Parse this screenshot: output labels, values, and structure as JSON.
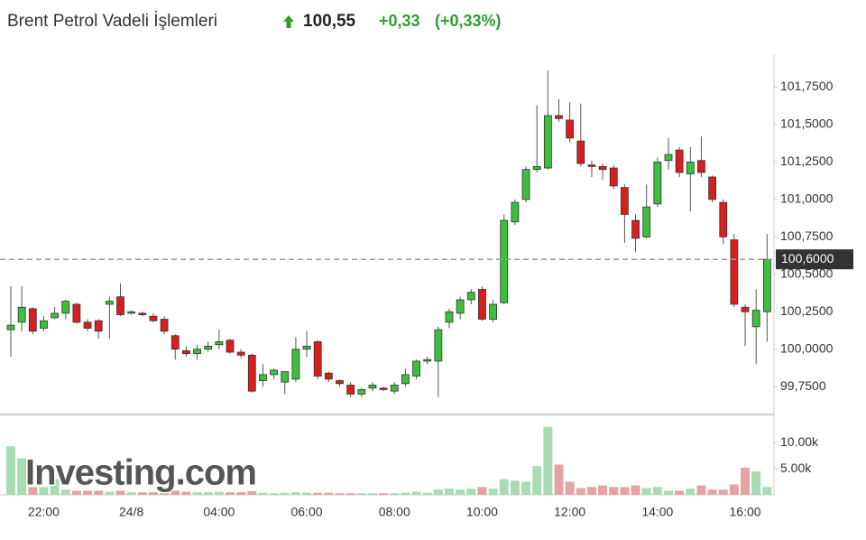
{
  "header": {
    "title": "Brent Petrol Vadeli İşlemleri",
    "price": "100,55",
    "change": "+0,33",
    "change_percent": "(+0,33%)"
  },
  "chart_data": {
    "type": "candlestick",
    "watermark": "Investing.com",
    "categories": [
      null,
      null,
      null,
      "22:00",
      null,
      null,
      null,
      null,
      null,
      null,
      null,
      "24/8",
      null,
      null,
      null,
      null,
      null,
      null,
      null,
      "04:00",
      null,
      null,
      null,
      null,
      null,
      null,
      null,
      "06:00",
      null,
      null,
      null,
      null,
      null,
      null,
      null,
      "08:00",
      null,
      null,
      null,
      null,
      null,
      null,
      null,
      "10:00",
      null,
      null,
      null,
      null,
      null,
      null,
      null,
      "12:00",
      null,
      null,
      null,
      null,
      null,
      null,
      null,
      "14:00",
      null,
      null,
      null,
      null,
      null,
      null,
      null,
      "16:00",
      null,
      null
    ],
    "open": [
      100.13,
      100.18,
      100.27,
      100.14,
      100.21,
      100.24,
      100.3,
      100.18,
      100.19,
      100.3,
      100.35,
      100.24,
      100.24,
      100.22,
      100.2,
      100.09,
      99.99,
      99.97,
      100.0,
      100.03,
      100.06,
      99.98,
      99.96,
      99.79,
      99.83,
      99.78,
      99.8,
      100.0,
      100.05,
      99.84,
      99.79,
      99.76,
      99.7,
      99.74,
      99.74,
      99.72,
      99.77,
      99.82,
      99.92,
      99.92,
      100.18,
      100.24,
      100.33,
      100.4,
      100.2,
      100.31,
      100.85,
      101.0,
      101.2,
      101.21,
      101.56,
      101.53,
      101.39,
      101.23,
      101.22,
      101.21,
      101.08,
      100.86,
      100.75,
      100.97,
      101.26,
      101.33,
      101.17,
      101.26,
      101.15,
      100.98,
      100.73,
      100.28,
      100.15,
      100.25
    ],
    "high": [
      100.42,
      100.42,
      100.28,
      100.22,
      100.28,
      100.33,
      100.31,
      100.2,
      100.2,
      100.35,
      100.44,
      100.26,
      100.25,
      100.24,
      100.22,
      100.1,
      100.02,
      100.03,
      100.05,
      100.13,
      100.07,
      100.0,
      99.97,
      99.9,
      99.87,
      99.85,
      100.08,
      100.12,
      100.06,
      99.85,
      99.8,
      99.78,
      99.74,
      99.78,
      99.75,
      99.78,
      99.87,
      99.93,
      99.95,
      100.15,
      100.27,
      100.35,
      100.4,
      100.42,
      100.33,
      100.9,
      101.0,
      101.22,
      101.63,
      101.86,
      101.67,
      101.65,
      101.64,
      101.26,
      101.24,
      101.23,
      101.1,
      100.9,
      101.1,
      101.28,
      101.41,
      101.35,
      101.35,
      101.42,
      101.16,
      101.0,
      100.77,
      100.3,
      100.4,
      100.77
    ],
    "low": [
      99.95,
      100.12,
      100.1,
      100.12,
      100.2,
      100.2,
      100.17,
      100.12,
      100.07,
      100.07,
      100.22,
      100.23,
      100.22,
      100.18,
      100.1,
      99.93,
      99.95,
      99.93,
      99.98,
      100.0,
      99.97,
      99.94,
      99.71,
      99.75,
      99.8,
      99.7,
      99.78,
      99.95,
      99.8,
      99.78,
      99.75,
      99.68,
      99.68,
      99.72,
      99.72,
      99.7,
      99.75,
      99.8,
      99.9,
      99.68,
      100.14,
      100.2,
      100.3,
      100.19,
      100.18,
      100.3,
      100.83,
      100.98,
      101.18,
      101.2,
      101.52,
      101.38,
      101.22,
      101.15,
      101.13,
      101.07,
      100.71,
      100.65,
      100.74,
      100.95,
      101.2,
      101.15,
      100.92,
      101.15,
      100.98,
      100.7,
      100.28,
      100.02,
      99.9,
      100.05
    ],
    "close": [
      100.16,
      100.28,
      100.12,
      100.19,
      100.24,
      100.32,
      100.18,
      100.14,
      100.12,
      100.32,
      100.23,
      100.25,
      100.23,
      100.19,
      100.12,
      100.0,
      99.97,
      100.0,
      100.02,
      100.05,
      99.98,
      99.96,
      99.72,
      99.83,
      99.86,
      99.85,
      100.0,
      100.02,
      99.82,
      99.8,
      99.77,
      99.7,
      99.73,
      99.76,
      99.73,
      99.76,
      99.83,
      99.92,
      99.93,
      100.13,
      100.25,
      100.33,
      100.38,
      100.2,
      100.3,
      100.86,
      100.98,
      101.2,
      101.22,
      101.56,
      101.54,
      101.41,
      101.24,
      101.22,
      101.2,
      101.09,
      100.9,
      100.74,
      100.95,
      101.25,
      101.3,
      101.18,
      101.25,
      101.18,
      101.0,
      100.75,
      100.3,
      100.25,
      100.26,
      100.6
    ],
    "volume": [
      9300,
      7000,
      1500,
      1500,
      3000,
      1000,
      800,
      800,
      800,
      600,
      800,
      500,
      500,
      500,
      500,
      800,
      600,
      500,
      500,
      600,
      500,
      500,
      700,
      400,
      300,
      400,
      500,
      400,
      400,
      400,
      300,
      300,
      300,
      300,
      300,
      300,
      400,
      600,
      400,
      1000,
      1200,
      1000,
      1200,
      1500,
      1200,
      3000,
      2700,
      2500,
      5500,
      13000,
      5800,
      2500,
      1300,
      1500,
      1800,
      1500,
      1500,
      1800,
      1300,
      1500,
      800,
      800,
      1200,
      1800,
      1000,
      1000,
      2000,
      5200,
      4500,
      1500
    ],
    "up_color": "#3cbf3c",
    "down_color": "#d91e1e",
    "volume_up_color": "#a8dcb2",
    "volume_down_color": "#e6a3a3",
    "ylim": [
      99.57,
      101.97
    ],
    "yticks": [
      {
        "value": 99.75,
        "label": "99,7500"
      },
      {
        "value": 100.0,
        "label": "100,0000"
      },
      {
        "value": 100.25,
        "label": "100,2500"
      },
      {
        "value": 100.5,
        "label": "100,5000"
      },
      {
        "value": 100.75,
        "label": "100,7500"
      },
      {
        "value": 101.0,
        "label": "101,0000"
      },
      {
        "value": 101.25,
        "label": "101,2500"
      },
      {
        "value": 101.5,
        "label": "101,5000"
      },
      {
        "value": 101.75,
        "label": "101,7500"
      }
    ],
    "current_price": {
      "value": 100.6,
      "label": "100,6000"
    },
    "volume_lim": [
      0,
      15200
    ],
    "volume_ticks": [
      {
        "value": 5000,
        "label": "5.00k"
      },
      {
        "value": 10000,
        "label": "10.00k"
      }
    ]
  }
}
